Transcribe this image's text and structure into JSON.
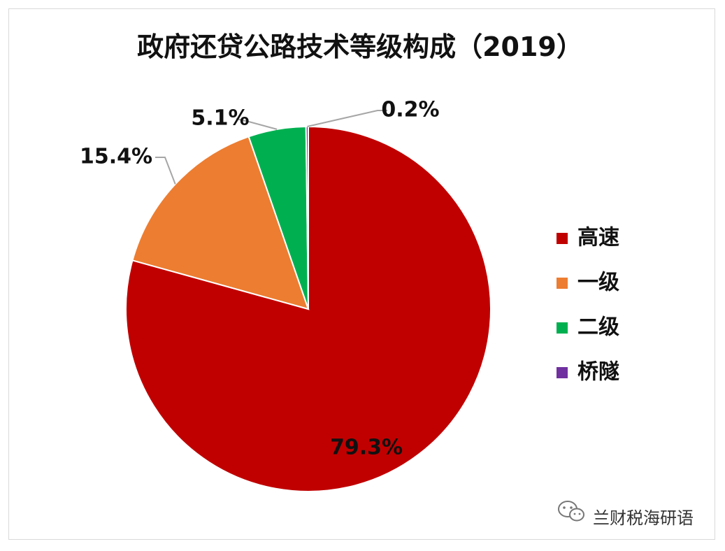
{
  "chart_data": {
    "type": "pie",
    "title": "政府还贷公路技术等级构成（2019）",
    "categories": [
      "高速",
      "一级",
      "二级",
      "桥隧"
    ],
    "values": [
      79.3,
      15.4,
      5.1,
      0.2
    ],
    "labels": [
      "79.3%",
      "15.4%",
      "5.1%",
      "0.2%"
    ],
    "colors": [
      "#c00000",
      "#ed7d31",
      "#00b050",
      "#7030a0"
    ],
    "legend_position": "right"
  },
  "watermark": {
    "text": "兰财税海研语",
    "icon": "wechat-icon"
  }
}
